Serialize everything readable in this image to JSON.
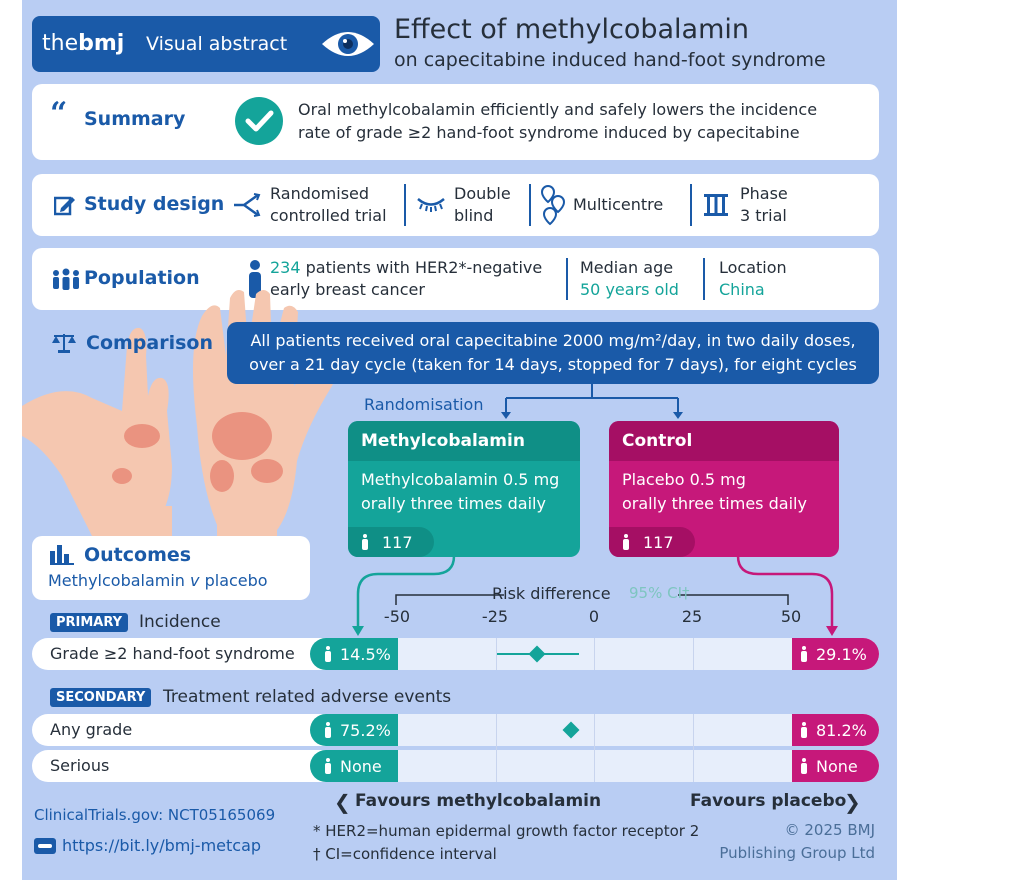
{
  "header": {
    "brand_the": "the",
    "brand_bmj": "bmj",
    "badge_label": "Visual abstract",
    "title": "Effect of methylcobalamin",
    "subtitle": "on capecitabine induced hand-foot syndrome"
  },
  "summary": {
    "label": "Summary",
    "line1": "Oral methylcobalamin efficiently and safely lowers the incidence",
    "line2": "rate of grade ≥2 hand-foot syndrome induced by capecitabine"
  },
  "study_design": {
    "label": "Study design",
    "items": [
      {
        "icon": "branch-icon",
        "line1": "Randomised",
        "line2": "controlled trial"
      },
      {
        "icon": "closed-eyes-icon",
        "line1": "Double",
        "line2": "blind"
      },
      {
        "icon": "map-pins-icon",
        "line1": "Multicentre",
        "line2": ""
      },
      {
        "icon": "roman-three-icon",
        "line1": "Phase",
        "line2": "3 trial"
      }
    ]
  },
  "population": {
    "label": "Population",
    "count": "234",
    "desc1": " patients with HER2*-negative",
    "desc2": "early breast cancer",
    "age_label": "Median age",
    "age_value": "50 years old",
    "loc_label": "Location",
    "loc_value": "China"
  },
  "comparison": {
    "label": "Comparison",
    "line1": "All patients received oral capecitabine 2000 mg/m²/day, in two daily doses,",
    "line2": "over a 21 day cycle (taken for 14 days, stopped for 7 days), for eight cycles",
    "randomisation": "Randomisation"
  },
  "arms": {
    "methyl": {
      "title": "Methylcobalamin",
      "line1": "Methylcobalamin 0.5 mg",
      "line2": "orally three times daily",
      "n": "117"
    },
    "control": {
      "title": "Control",
      "line1": "Placebo 0.5 mg",
      "line2": "orally three times daily",
      "n": "117"
    }
  },
  "outcomes": {
    "label": "Outcomes",
    "sub_a": "Methylcobalamin ",
    "sub_v": "v",
    "sub_b": " placebo",
    "axis_title": "Risk difference",
    "ci_label": "95% CI†",
    "ticks": [
      "-50",
      "-25",
      "0",
      "25",
      "50"
    ],
    "primary_badge": "PRIMARY",
    "primary_title": "Incidence",
    "secondary_badge": "SECONDARY",
    "secondary_title": "Treatment related adverse events",
    "rows": [
      {
        "label": "Grade ≥2 hand-foot syndrome",
        "methyl": "14.5%",
        "control": "29.1%"
      },
      {
        "label": "Any grade",
        "methyl": "75.2%",
        "control": "81.2%"
      },
      {
        "label": "Serious",
        "methyl": "None",
        "control": "None"
      }
    ],
    "favours_left": "Favours methylcobalamin",
    "favours_right": "Favours placebo"
  },
  "chart_data": {
    "type": "scatter",
    "xlabel": "Risk difference",
    "xlim": [
      -50,
      50
    ],
    "xticks": [
      -50,
      -25,
      0,
      25,
      50
    ],
    "series": [
      {
        "name": "Grade ≥2 hand-foot syndrome",
        "values": [
          {
            "x": -14.6,
            "ci": [
              -25,
              -4
            ]
          }
        ]
      },
      {
        "name": "Any grade",
        "values": [
          {
            "x": -6,
            "ci": null
          }
        ]
      }
    ]
  },
  "footer": {
    "trial": "ClinicalTrials.gov: NCT05165069",
    "link": "https://bit.ly/bmj-metcap",
    "fn1": "* HER2=human epidermal growth factor receptor 2",
    "fn2": "† CI=confidence interval",
    "copy1": "© 2025 BMJ",
    "copy2": "Publishing Group Ltd"
  },
  "colors": {
    "background": "#b9cdf3",
    "navy": "#1a5aa8",
    "teal": "#14a49a",
    "magenta": "#c6187a"
  }
}
